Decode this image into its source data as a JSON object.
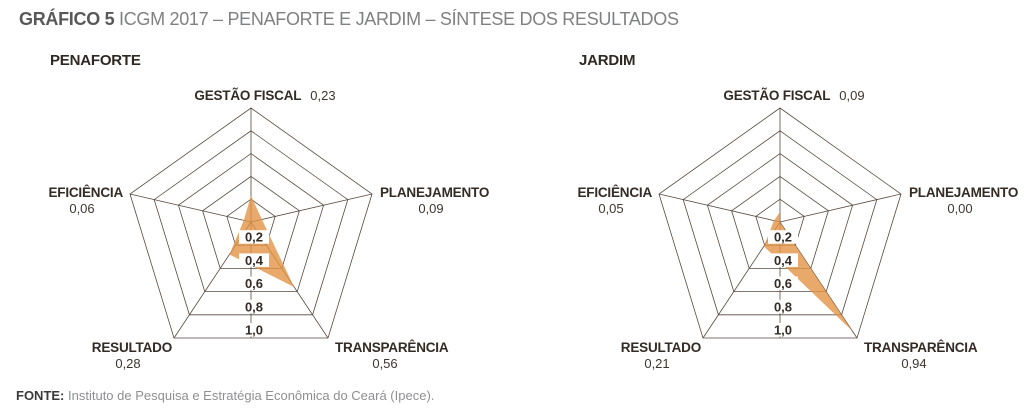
{
  "title": {
    "prefix": "GRÁFICO 5",
    "rest": "ICGM 2017 – PENAFORTE E JARDIM – SÍNTESE DOS RESULTADOS"
  },
  "source": {
    "label": "FONTE:",
    "text": "Instituto de Pesquisa e Estratégia Econômica do Ceará (Ipece)."
  },
  "colors": {
    "fill": "#E29446",
    "grid": "#564A40",
    "ink": "#332B24",
    "title_bold": "#58585A",
    "title_light": "#7F8082",
    "chart_title": "#2F2823",
    "source_label": "#3A3A3A",
    "source_text": "#8E8F92"
  },
  "chart_data": [
    {
      "type": "radar",
      "title": "PENAFORTE",
      "categories": [
        "GESTÃO FISCAL",
        "PLANEJAMENTO",
        "TRANSPARÊNCIA",
        "RESULTADO",
        "EFICIÊNCIA"
      ],
      "values": [
        0.23,
        0.09,
        0.56,
        0.28,
        0.06
      ],
      "value_labels": [
        "0,23",
        "0,09",
        "0,56",
        "0,28",
        "0,06"
      ],
      "axis_ticks": [
        "0,2",
        "0,4",
        "0,6",
        "0,8",
        "1,0"
      ],
      "axis_range": [
        0,
        1
      ],
      "grid": true,
      "legend": false
    },
    {
      "type": "radar",
      "title": "JARDIM",
      "categories": [
        "GESTÃO FISCAL",
        "PLANEJAMENTO",
        "TRANSPARÊNCIA",
        "RESULTADO",
        "EFICIÊNCIA"
      ],
      "values": [
        0.09,
        0.0,
        0.94,
        0.21,
        0.05
      ],
      "value_labels": [
        "0,09",
        "0,00",
        "0,94",
        "0,21",
        "0,05"
      ],
      "axis_ticks": [
        "0,2",
        "0,4",
        "0,6",
        "0,8",
        "1,0"
      ],
      "axis_range": [
        0,
        1
      ],
      "grid": true,
      "legend": false
    }
  ]
}
